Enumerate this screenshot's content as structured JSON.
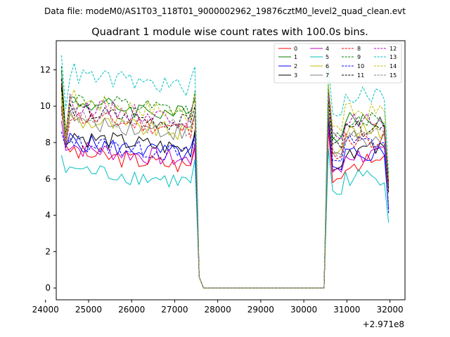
{
  "chart_data": {
    "type": "line",
    "suptitle": "Data file: modeM0/AS1T03_118T01_9000002962_19876cztM0_level2_quad_clean.evt",
    "title": "Quadrant 1 module wise count rates with 100.0s bins.",
    "xlabel": "",
    "ylabel": "",
    "x_offset_label": "+2.971e8",
    "xlim": [
      24250,
      32350
    ],
    "ylim": [
      -0.65,
      13.6
    ],
    "x_ticks": [
      24000,
      25000,
      26000,
      27000,
      28000,
      29000,
      30000,
      31000,
      32000
    ],
    "x_tick_labels": [
      "24000",
      "25000",
      "26000",
      "27000",
      "28000",
      "29000",
      "30000",
      "31000",
      "32000"
    ],
    "y_ticks": [
      0,
      2,
      4,
      6,
      8,
      10,
      12
    ],
    "y_tick_labels": [
      "0",
      "2",
      "4",
      "6",
      "8",
      "10",
      "12"
    ],
    "grid": false,
    "legend_placement": "upper right",
    "legend_columns": 4,
    "series": [
      {
        "name": "0",
        "color": "#ff0000",
        "dash": "solid",
        "base1": 6.7,
        "start": 11.2,
        "dip": 7.6,
        "base2": 6.9,
        "low": 5.3
      },
      {
        "name": "1",
        "color": "#008000",
        "dash": "solid",
        "base1": 9.5,
        "start": 12.0,
        "dip": 8.3,
        "base2": 9.2,
        "low": 5.6
      },
      {
        "name": "2",
        "color": "#0000ff",
        "dash": "solid",
        "base1": 7.3,
        "start": 10.5,
        "dip": 7.7,
        "base2": 7.4,
        "low": 4.3
      },
      {
        "name": "3",
        "color": "#000000",
        "dash": "solid",
        "base1": 7.6,
        "start": 11.0,
        "dip": 8.0,
        "base2": 7.6,
        "low": 5.5
      },
      {
        "name": "4",
        "color": "#bf00bf",
        "dash": "solid",
        "base1": 7.0,
        "start": 9.2,
        "dip": 7.8,
        "base2": 7.3,
        "low": 5.7
      },
      {
        "name": "5",
        "color": "#00bfbf",
        "dash": "solid",
        "base1": 5.8,
        "start": 7.3,
        "dip": 6.1,
        "base2": 6.1,
        "low": 3.6
      },
      {
        "name": "6",
        "color": "#bfbf00",
        "dash": "solid",
        "base1": 8.5,
        "start": 10.5,
        "dip": 7.9,
        "base2": 8.6,
        "low": 5.6
      },
      {
        "name": "7",
        "color": "#808080",
        "dash": "solid",
        "base1": 8.5,
        "start": 10.0,
        "dip": 7.7,
        "base2": 8.3,
        "low": 5.6
      },
      {
        "name": "8",
        "color": "#ff0000",
        "dash": "dashed",
        "base1": 8.7,
        "start": 10.0,
        "dip": 8.0,
        "base2": 8.2,
        "low": 5.8
      },
      {
        "name": "9",
        "color": "#008000",
        "dash": "dashed",
        "base1": 9.6,
        "start": 12.2,
        "dip": 8.5,
        "base2": 9.3,
        "low": 5.9
      },
      {
        "name": "10",
        "color": "#0000ff",
        "dash": "dashed",
        "base1": 7.3,
        "start": 8.6,
        "dip": 7.5,
        "base2": 8.0,
        "low": 4.1
      },
      {
        "name": "11",
        "color": "#000000",
        "dash": "dashed",
        "base1": 9.0,
        "start": 11.5,
        "dip": 8.2,
        "base2": 8.7,
        "low": 5.2
      },
      {
        "name": "12",
        "color": "#bf00bf",
        "dash": "dashed",
        "base1": 9.3,
        "start": 9.6,
        "dip": 8.3,
        "base2": 9.2,
        "low": 6.0
      },
      {
        "name": "13",
        "color": "#00bfbf",
        "dash": "dashed",
        "base1": 11.0,
        "start": 12.8,
        "dip": 10.0,
        "base2": 10.6,
        "low": 6.3
      },
      {
        "name": "14",
        "color": "#bfbf00",
        "dash": "dashed",
        "base1": 9.6,
        "start": 10.8,
        "dip": 8.6,
        "base2": 9.7,
        "low": 6.0
      },
      {
        "name": "15",
        "color": "#808080",
        "dash": "dashed",
        "base1": 8.7,
        "start": 9.8,
        "dip": 7.8,
        "base2": 8.3,
        "low": 4.6
      }
    ]
  }
}
